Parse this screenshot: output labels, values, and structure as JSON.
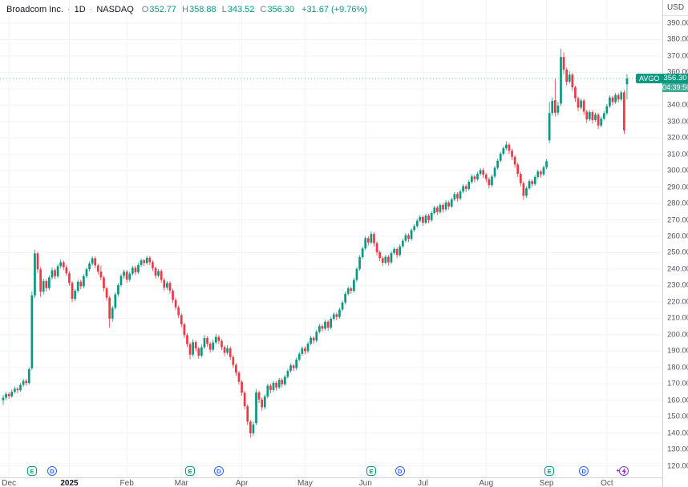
{
  "header": {
    "title": "Broadcom Inc.",
    "sep": "·",
    "interval": "1D",
    "exchange": "NASDAQ",
    "ohlc": [
      {
        "label": "O",
        "value": "352.77"
      },
      {
        "label": "H",
        "value": "358.88"
      },
      {
        "label": "L",
        "value": "343.52"
      },
      {
        "label": "C",
        "value": "356.30"
      }
    ],
    "change": "+31.67 (+9.76%)"
  },
  "price_axis": {
    "currency": "USD",
    "min": 120,
    "max": 390,
    "step": 10,
    "ticks": [
      "390.00",
      "380.00",
      "370.00",
      "360.00",
      "350.00",
      "340.00",
      "330.00",
      "320.00",
      "310.00",
      "300.00",
      "290.00",
      "280.00",
      "270.00",
      "260.00",
      "250.00",
      "240.00",
      "230.00",
      "220.00",
      "210.00",
      "200.00",
      "190.00",
      "180.00",
      "170.00",
      "160.00",
      "150.00",
      "140.00",
      "130.00",
      "120.00"
    ]
  },
  "last_price": {
    "ticker": "AVGO",
    "price": "356.30",
    "countdown": "04:39:50",
    "color": "#089981"
  },
  "time_axis": {
    "labels": [
      {
        "text": "Dec",
        "index": 2,
        "emphasis": false
      },
      {
        "text": "2025",
        "index": 23,
        "emphasis": true
      },
      {
        "text": "Feb",
        "index": 43,
        "emphasis": false
      },
      {
        "text": "Mar",
        "index": 62,
        "emphasis": false
      },
      {
        "text": "Apr",
        "index": 83,
        "emphasis": false
      },
      {
        "text": "May",
        "index": 105,
        "emphasis": false
      },
      {
        "text": "Jun",
        "index": 126,
        "emphasis": false
      },
      {
        "text": "Jul",
        "index": 146,
        "emphasis": false
      },
      {
        "text": "Aug",
        "index": 168,
        "emphasis": false
      },
      {
        "text": "Sep",
        "index": 189,
        "emphasis": false
      },
      {
        "text": "Oct",
        "index": 210,
        "emphasis": false
      }
    ]
  },
  "event_markers": {
    "earnings": {
      "glyph": "E",
      "color": "#089981",
      "indices": [
        10,
        65,
        128,
        190
      ]
    },
    "dividends": {
      "glyph": "D",
      "color": "#2962ff",
      "indices": [
        17,
        75,
        138,
        202
      ]
    },
    "flash": {
      "glyph": "bolt",
      "color": "#9334b5",
      "indices": [
        216
      ]
    }
  },
  "chart_data": {
    "type": "candlestick",
    "symbol": "AVGO",
    "name": "Broadcom Inc.",
    "exchange": "NASDAQ",
    "interval": "1D",
    "title": "Broadcom Inc. · 1D · NASDAQ",
    "y_range": [
      120,
      390
    ],
    "grid": true,
    "up_color": "#089981",
    "down_color": "#f23645",
    "grid_color": "#f0f3fa",
    "last_close": 356.3,
    "prev_close": 324.63,
    "columns": [
      "open",
      "high",
      "low",
      "close"
    ],
    "candles": [
      [
        160.0,
        163.2,
        157.1,
        161.5
      ],
      [
        161.5,
        165.0,
        160.2,
        163.8
      ],
      [
        163.8,
        164.9,
        160.8,
        162.4
      ],
      [
        162.4,
        166.4,
        161.5,
        165.2
      ],
      [
        165.2,
        168.3,
        164.0,
        167.0
      ],
      [
        167.0,
        168.1,
        164.3,
        166.1
      ],
      [
        166.1,
        170.5,
        165.0,
        169.3
      ],
      [
        169.3,
        173.0,
        168.2,
        171.8
      ],
      [
        171.8,
        172.9,
        168.9,
        170.5
      ],
      [
        170.5,
        180.1,
        169.6,
        178.9
      ],
      [
        179.5,
        226.5,
        178.2,
        224.0
      ],
      [
        224.0,
        251.9,
        222.4,
        249.6
      ],
      [
        249.6,
        250.7,
        237.6,
        239.8
      ],
      [
        239.8,
        241.2,
        223.1,
        226.2
      ],
      [
        226.2,
        234.1,
        224.5,
        232.7
      ],
      [
        232.7,
        233.8,
        226.3,
        228.4
      ],
      [
        228.4,
        236.2,
        227.1,
        234.9
      ],
      [
        234.9,
        241.0,
        233.5,
        239.3
      ],
      [
        239.3,
        240.4,
        233.9,
        235.6
      ],
      [
        235.6,
        243.2,
        234.4,
        241.8
      ],
      [
        241.8,
        245.9,
        240.3,
        244.2
      ],
      [
        244.2,
        245.3,
        239.4,
        241.1
      ],
      [
        241.1,
        242.6,
        235.8,
        237.4
      ],
      [
        237.4,
        238.5,
        229.9,
        231.6
      ],
      [
        231.6,
        232.7,
        219.8,
        221.9
      ],
      [
        221.9,
        228.0,
        220.4,
        226.8
      ],
      [
        226.8,
        233.6,
        225.5,
        232.3
      ],
      [
        232.3,
        233.4,
        227.7,
        229.5
      ],
      [
        229.5,
        236.9,
        228.3,
        235.7
      ],
      [
        235.7,
        241.1,
        234.6,
        239.9
      ],
      [
        239.9,
        244.6,
        238.5,
        243.4
      ],
      [
        243.4,
        248.0,
        242.1,
        246.6
      ],
      [
        246.6,
        247.7,
        240.6,
        242.2
      ],
      [
        242.2,
        243.3,
        236.7,
        238.5
      ],
      [
        238.5,
        242.1,
        233.2,
        234.9
      ],
      [
        234.9,
        236.0,
        226.5,
        228.3
      ],
      [
        228.3,
        229.4,
        220.7,
        222.5
      ],
      [
        222.5,
        223.6,
        204.3,
        209.8
      ],
      [
        209.8,
        217.6,
        207.9,
        216.4
      ],
      [
        216.4,
        225.8,
        215.1,
        224.6
      ],
      [
        224.6,
        231.4,
        223.2,
        230.2
      ],
      [
        230.2,
        237.0,
        229.1,
        235.8
      ],
      [
        235.8,
        239.6,
        234.2,
        238.4
      ],
      [
        238.4,
        239.5,
        231.8,
        233.6
      ],
      [
        233.6,
        238.4,
        232.3,
        237.2
      ],
      [
        237.2,
        242.0,
        236.1,
        240.8
      ],
      [
        240.8,
        241.9,
        236.3,
        238.1
      ],
      [
        238.1,
        243.7,
        237.0,
        242.5
      ],
      [
        242.5,
        246.5,
        241.2,
        245.3
      ],
      [
        245.3,
        246.4,
        241.9,
        243.7
      ],
      [
        243.7,
        248.1,
        242.6,
        246.9
      ],
      [
        246.9,
        248.0,
        242.4,
        244.2
      ],
      [
        244.2,
        245.3,
        238.8,
        240.6
      ],
      [
        240.6,
        241.7,
        234.2,
        236.0
      ],
      [
        236.0,
        240.0,
        234.9,
        238.8
      ],
      [
        238.8,
        239.9,
        231.6,
        233.4
      ],
      [
        233.4,
        234.5,
        226.9,
        228.7
      ],
      [
        228.7,
        232.7,
        227.4,
        231.5
      ],
      [
        231.5,
        232.6,
        225.1,
        226.9
      ],
      [
        226.9,
        228.0,
        219.4,
        221.2
      ],
      [
        221.2,
        222.3,
        214.8,
        216.6
      ],
      [
        216.6,
        217.7,
        210.1,
        211.9
      ],
      [
        211.9,
        213.0,
        204.5,
        206.3
      ],
      [
        206.3,
        207.4,
        197.9,
        199.7
      ],
      [
        199.7,
        200.8,
        192.4,
        194.2
      ],
      [
        194.2,
        195.3,
        185.0,
        187.8
      ],
      [
        187.8,
        197.2,
        186.5,
        195.4
      ],
      [
        195.4,
        196.5,
        189.8,
        191.6
      ],
      [
        191.6,
        192.7,
        185.3,
        187.1
      ],
      [
        187.1,
        194.1,
        186.0,
        192.3
      ],
      [
        192.3,
        199.7,
        191.2,
        197.9
      ],
      [
        197.9,
        199.0,
        192.7,
        194.5
      ],
      [
        194.5,
        195.6,
        189.0,
        190.8
      ],
      [
        190.8,
        197.0,
        189.7,
        195.2
      ],
      [
        195.2,
        200.4,
        194.1,
        198.6
      ],
      [
        198.6,
        199.7,
        194.3,
        196.1
      ],
      [
        196.1,
        197.2,
        190.6,
        192.4
      ],
      [
        192.4,
        193.5,
        187.1,
        188.9
      ],
      [
        188.9,
        193.5,
        187.8,
        191.7
      ],
      [
        191.7,
        192.8,
        184.5,
        186.3
      ],
      [
        186.3,
        187.4,
        179.7,
        181.5
      ],
      [
        181.5,
        182.6,
        174.9,
        176.8
      ],
      [
        176.8,
        177.9,
        169.4,
        171.2
      ],
      [
        171.2,
        172.3,
        162.8,
        164.6
      ],
      [
        164.6,
        165.7,
        154.5,
        156.3
      ],
      [
        156.3,
        157.4,
        144.9,
        146.9
      ],
      [
        146.9,
        148.0,
        137.1,
        139.8
      ],
      [
        139.8,
        147.0,
        138.2,
        145.2
      ],
      [
        146.0,
        166.9,
        144.8,
        164.8
      ],
      [
        164.8,
        165.9,
        158.4,
        160.4
      ],
      [
        160.4,
        161.5,
        153.6,
        155.7
      ],
      [
        155.7,
        163.5,
        154.4,
        162.3
      ],
      [
        162.3,
        170.1,
        161.2,
        168.9
      ],
      [
        168.9,
        170.0,
        164.2,
        166.2
      ],
      [
        166.2,
        171.8,
        165.1,
        170.6
      ],
      [
        170.6,
        171.7,
        165.9,
        167.8
      ],
      [
        167.8,
        173.6,
        166.7,
        172.4
      ],
      [
        172.4,
        173.5,
        167.8,
        169.7
      ],
      [
        169.7,
        175.5,
        168.6,
        174.3
      ],
      [
        174.3,
        179.1,
        173.2,
        177.9
      ],
      [
        177.9,
        182.4,
        176.8,
        181.2
      ],
      [
        181.2,
        182.3,
        177.7,
        179.6
      ],
      [
        179.6,
        186.0,
        178.5,
        184.8
      ],
      [
        184.8,
        189.5,
        183.7,
        188.3
      ],
      [
        188.3,
        192.9,
        187.2,
        191.7
      ],
      [
        191.7,
        192.8,
        188.0,
        189.9
      ],
      [
        189.9,
        195.7,
        188.8,
        194.5
      ],
      [
        194.5,
        199.3,
        193.4,
        198.1
      ],
      [
        198.1,
        199.2,
        194.5,
        196.4
      ],
      [
        196.4,
        203.0,
        195.3,
        201.8
      ],
      [
        201.8,
        206.4,
        200.7,
        205.2
      ],
      [
        205.2,
        206.3,
        201.7,
        203.6
      ],
      [
        203.6,
        209.1,
        202.5,
        207.9
      ],
      [
        207.9,
        209.0,
        202.4,
        204.3
      ],
      [
        204.3,
        210.9,
        203.2,
        209.7
      ],
      [
        209.7,
        213.6,
        208.6,
        212.4
      ],
      [
        212.4,
        213.5,
        208.9,
        210.8
      ],
      [
        210.8,
        216.5,
        209.7,
        215.3
      ],
      [
        215.3,
        220.8,
        214.2,
        219.6
      ],
      [
        219.6,
        226.1,
        218.5,
        224.9
      ],
      [
        224.9,
        229.4,
        223.8,
        228.2
      ],
      [
        228.2,
        229.3,
        224.8,
        226.7
      ],
      [
        226.7,
        234.6,
        225.6,
        233.4
      ],
      [
        233.4,
        241.3,
        232.3,
        240.1
      ],
      [
        240.1,
        248.5,
        239.0,
        247.3
      ],
      [
        247.3,
        253.8,
        246.2,
        252.6
      ],
      [
        252.6,
        260.1,
        251.5,
        258.9
      ],
      [
        258.9,
        260.0,
        254.3,
        256.2
      ],
      [
        256.2,
        263.1,
        255.1,
        261.4
      ],
      [
        261.4,
        262.5,
        253.9,
        255.8
      ],
      [
        255.8,
        256.9,
        248.4,
        250.3
      ],
      [
        250.3,
        251.4,
        244.8,
        246.7
      ],
      [
        246.7,
        247.8,
        242.0,
        243.9
      ],
      [
        243.9,
        248.7,
        242.8,
        247.5
      ],
      [
        247.5,
        248.6,
        242.2,
        244.1
      ],
      [
        244.1,
        251.0,
        243.0,
        249.8
      ],
      [
        249.8,
        253.4,
        248.7,
        252.2
      ],
      [
        252.2,
        253.3,
        246.7,
        248.6
      ],
      [
        248.6,
        255.1,
        247.5,
        253.9
      ],
      [
        253.9,
        258.5,
        252.8,
        257.3
      ],
      [
        257.3,
        261.9,
        256.2,
        260.7
      ],
      [
        260.7,
        261.8,
        256.5,
        258.4
      ],
      [
        258.4,
        265.0,
        257.3,
        263.8
      ],
      [
        263.8,
        267.4,
        262.7,
        266.2
      ],
      [
        266.2,
        270.7,
        265.1,
        269.5
      ],
      [
        269.5,
        273.0,
        268.4,
        271.8
      ],
      [
        271.8,
        272.9,
        266.4,
        268.3
      ],
      [
        268.3,
        273.8,
        267.2,
        272.6
      ],
      [
        272.6,
        273.7,
        268.0,
        269.9
      ],
      [
        269.9,
        275.4,
        268.8,
        274.2
      ],
      [
        274.2,
        278.7,
        273.1,
        277.5
      ],
      [
        277.5,
        278.6,
        272.9,
        274.8
      ],
      [
        274.8,
        280.3,
        273.7,
        279.1
      ],
      [
        279.1,
        280.2,
        274.5,
        276.4
      ],
      [
        276.4,
        281.9,
        275.3,
        280.7
      ],
      [
        280.7,
        281.8,
        276.3,
        278.2
      ],
      [
        278.2,
        283.7,
        277.1,
        282.5
      ],
      [
        282.5,
        287.0,
        281.4,
        285.8
      ],
      [
        285.8,
        286.9,
        281.2,
        283.1
      ],
      [
        283.1,
        288.6,
        282.0,
        287.4
      ],
      [
        287.4,
        291.8,
        286.3,
        290.6
      ],
      [
        290.6,
        291.7,
        287.0,
        288.9
      ],
      [
        288.9,
        294.4,
        287.8,
        293.2
      ],
      [
        293.2,
        297.7,
        292.1,
        296.5
      ],
      [
        296.5,
        297.6,
        292.9,
        294.8
      ],
      [
        294.8,
        299.3,
        293.7,
        298.1
      ],
      [
        298.1,
        301.6,
        297.0,
        300.4
      ],
      [
        300.4,
        301.5,
        295.7,
        297.6
      ],
      [
        297.6,
        298.7,
        293.0,
        294.9
      ],
      [
        294.9,
        296.0,
        289.3,
        291.2
      ],
      [
        291.2,
        297.7,
        290.1,
        296.5
      ],
      [
        296.5,
        303.0,
        295.4,
        301.8
      ],
      [
        301.8,
        307.3,
        300.7,
        306.1
      ],
      [
        306.1,
        311.6,
        305.0,
        310.4
      ],
      [
        310.4,
        314.9,
        309.3,
        313.7
      ],
      [
        313.7,
        317.9,
        312.6,
        315.9
      ],
      [
        315.9,
        317.0,
        310.3,
        312.2
      ],
      [
        312.2,
        313.3,
        306.6,
        308.5
      ],
      [
        308.5,
        309.6,
        301.9,
        303.8
      ],
      [
        303.8,
        304.9,
        296.2,
        298.1
      ],
      [
        298.1,
        299.2,
        290.5,
        292.4
      ],
      [
        292.4,
        293.5,
        282.3,
        284.7
      ],
      [
        284.7,
        290.5,
        283.6,
        289.3
      ],
      [
        289.3,
        294.8,
        288.2,
        293.6
      ],
      [
        293.6,
        294.7,
        290.0,
        291.9
      ],
      [
        291.9,
        297.4,
        290.8,
        296.2
      ],
      [
        296.2,
        300.7,
        295.1,
        299.5
      ],
      [
        299.5,
        300.6,
        295.9,
        297.8
      ],
      [
        297.8,
        303.3,
        296.7,
        302.1
      ],
      [
        302.1,
        307.0,
        301.0,
        305.8
      ],
      [
        318.5,
        341.9,
        316.8,
        335.2
      ],
      [
        335.2,
        344.8,
        333.6,
        342.6
      ],
      [
        343.0,
        356.2,
        333.1,
        335.4
      ],
      [
        335.4,
        341.9,
        333.8,
        339.8
      ],
      [
        341.0,
        374.5,
        339.4,
        369.4
      ],
      [
        369.4,
        372.3,
        358.9,
        361.7
      ],
      [
        361.7,
        362.8,
        352.1,
        354.3
      ],
      [
        354.3,
        360.7,
        353.2,
        358.6
      ],
      [
        358.6,
        359.7,
        348.7,
        350.9
      ],
      [
        350.9,
        352.0,
        342.0,
        344.2
      ],
      [
        344.2,
        345.3,
        336.3,
        338.5
      ],
      [
        338.5,
        344.0,
        337.4,
        342.8
      ],
      [
        342.8,
        343.9,
        334.0,
        336.1
      ],
      [
        336.1,
        337.2,
        329.2,
        331.4
      ],
      [
        331.4,
        337.0,
        330.3,
        335.7
      ],
      [
        335.7,
        336.8,
        328.7,
        330.9
      ],
      [
        330.9,
        335.4,
        329.8,
        334.2
      ],
      [
        334.2,
        335.3,
        325.4,
        327.6
      ],
      [
        327.6,
        333.0,
        326.5,
        331.8
      ],
      [
        331.8,
        336.3,
        330.7,
        335.1
      ],
      [
        335.1,
        340.6,
        334.0,
        339.4
      ],
      [
        339.4,
        345.9,
        338.3,
        344.7
      ],
      [
        344.7,
        345.8,
        340.1,
        341.9
      ],
      [
        341.9,
        347.4,
        340.8,
        346.2
      ],
      [
        346.2,
        347.3,
        341.7,
        343.5
      ],
      [
        343.5,
        349.0,
        342.4,
        347.8
      ],
      [
        347.8,
        349.2,
        322.4,
        324.63
      ],
      [
        352.77,
        358.88,
        343.52,
        356.3
      ]
    ]
  }
}
